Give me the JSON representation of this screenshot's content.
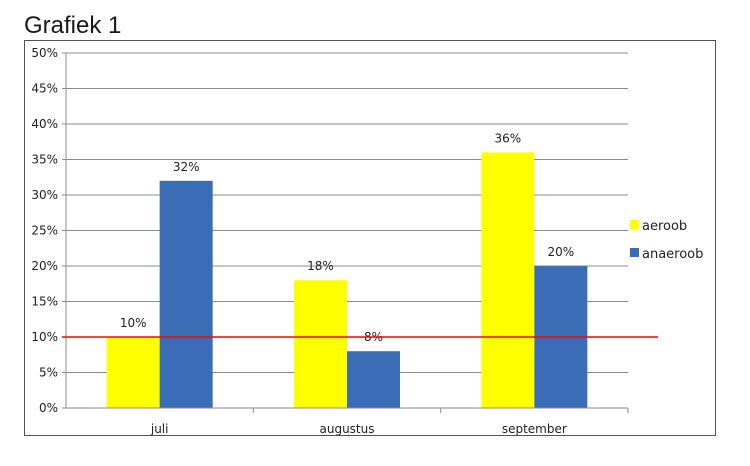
{
  "chart_data": {
    "type": "bar",
    "title": "Grafiek 1",
    "categories": [
      "juli",
      "augustus",
      "september"
    ],
    "series": [
      {
        "name": "aeroob",
        "color": "#ffff00",
        "values": [
          10,
          18,
          36
        ],
        "labels": [
          "10%",
          "18%",
          "36%"
        ]
      },
      {
        "name": "anaeroob",
        "color": "#3a6db5",
        "values": [
          32,
          8,
          20
        ],
        "labels": [
          "32%",
          "8%",
          "20%"
        ]
      }
    ],
    "ylim": [
      0,
      50
    ],
    "ytick_labels": [
      "0%",
      "5%",
      "10%",
      "15%",
      "20%",
      "25%",
      "30%",
      "35%",
      "40%",
      "45%",
      "50%"
    ],
    "reference_line": {
      "value": 10,
      "color": "#ff0000"
    },
    "grid": true,
    "legend_position": "right",
    "xlabel": "",
    "ylabel": ""
  }
}
